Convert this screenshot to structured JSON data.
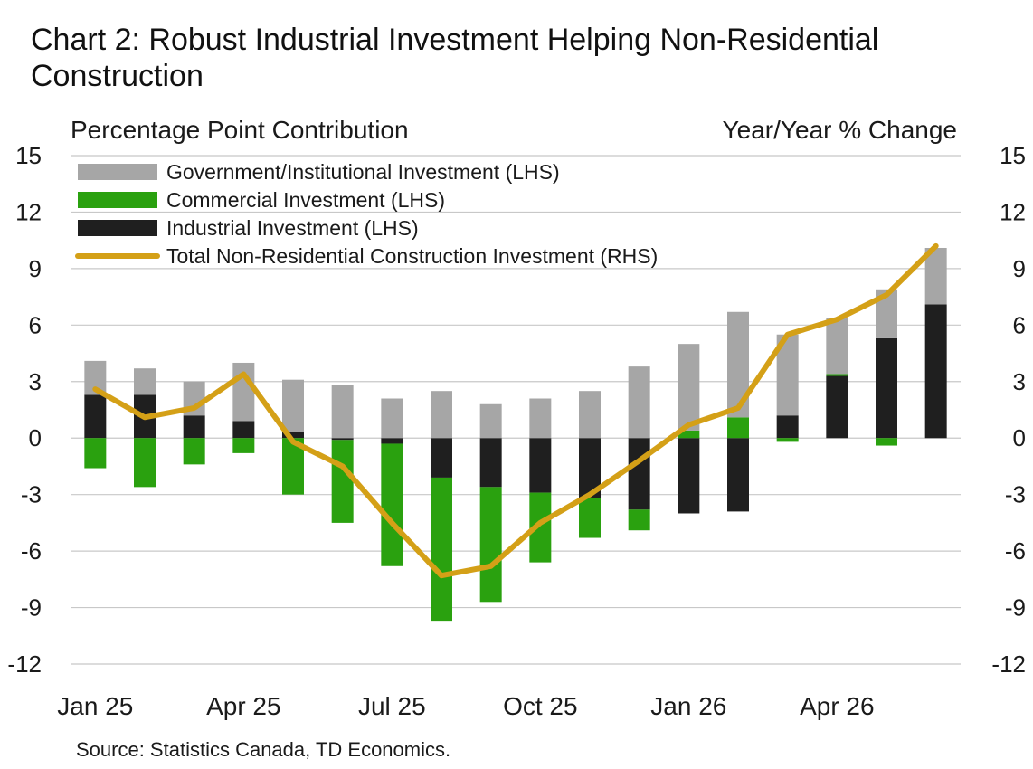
{
  "title": "Chart 2: Robust Industrial Investment Helping Non-Residential Construction",
  "source": "Source: Statistics Canada, TD Economics.",
  "colors": {
    "government": "#a6a6a6",
    "commercial": "#2aa10f",
    "industrial": "#1f1f1f",
    "total": "#d4a017",
    "grid": "#c8c8c8"
  },
  "chart_data": {
    "type": "bar",
    "stacked": true,
    "ylabel_left": "Percentage Point Contribution",
    "ylabel_right": "Year/Year % Change",
    "ylim": [
      -12,
      15
    ],
    "yticks": [
      "-12",
      "-9",
      "-6",
      "-3",
      "0",
      "3",
      "6",
      "9",
      "12",
      "15"
    ],
    "grid": true,
    "legend_position": "top-left",
    "x": [
      "Jan 25",
      "Feb 25",
      "Mar 25",
      "Apr 25",
      "May 25",
      "Jun 25",
      "Jul 25",
      "Aug 25",
      "Sep 25",
      "Oct 25",
      "Nov 25",
      "Dec 25",
      "Jan 26",
      "Feb 26",
      "Mar 26",
      "Apr 26",
      "May 26",
      "Jun 26"
    ],
    "x_tick_labels": [
      {
        "label": "Jan 25",
        "index": 0
      },
      {
        "label": "Apr 25",
        "index": 3
      },
      {
        "label": "Jul 25",
        "index": 6
      },
      {
        "label": "Oct 25",
        "index": 9
      },
      {
        "label": "Jan 26",
        "index": 12
      },
      {
        "label": "Apr 26",
        "index": 15
      }
    ],
    "series": [
      {
        "name": "Government/Institutional Investment (LHS)",
        "kind": "bar",
        "axis": "left",
        "values": [
          1.8,
          1.4,
          1.8,
          3.1,
          2.8,
          2.8,
          2.1,
          2.5,
          1.8,
          2.1,
          2.5,
          3.8,
          4.6,
          5.6,
          4.3,
          3.0,
          2.6,
          3.0
        ]
      },
      {
        "name": "Commercial Investment (LHS)",
        "kind": "bar",
        "axis": "left",
        "values": [
          -1.6,
          -2.6,
          -1.4,
          -0.8,
          -3.0,
          -4.4,
          -6.5,
          -7.6,
          -6.1,
          -3.7,
          -2.1,
          -1.1,
          0.4,
          1.1,
          -0.2,
          0.1,
          -0.4,
          0.0
        ]
      },
      {
        "name": "Industrial Investment (LHS)",
        "kind": "bar",
        "axis": "left",
        "values": [
          2.3,
          2.3,
          1.2,
          0.9,
          0.3,
          -0.1,
          -0.3,
          -2.1,
          -2.6,
          -2.9,
          -3.2,
          -3.8,
          -4.0,
          -3.9,
          1.2,
          3.3,
          5.3,
          7.1
        ]
      },
      {
        "name": "Total Non-Residential Construction Investment (RHS)",
        "kind": "line",
        "axis": "right",
        "values": [
          2.6,
          1.1,
          1.6,
          3.4,
          -0.2,
          -1.5,
          -4.5,
          -7.3,
          -6.8,
          -4.5,
          -3.0,
          -1.2,
          0.7,
          1.6,
          5.5,
          6.3,
          7.6,
          10.2
        ]
      }
    ]
  }
}
